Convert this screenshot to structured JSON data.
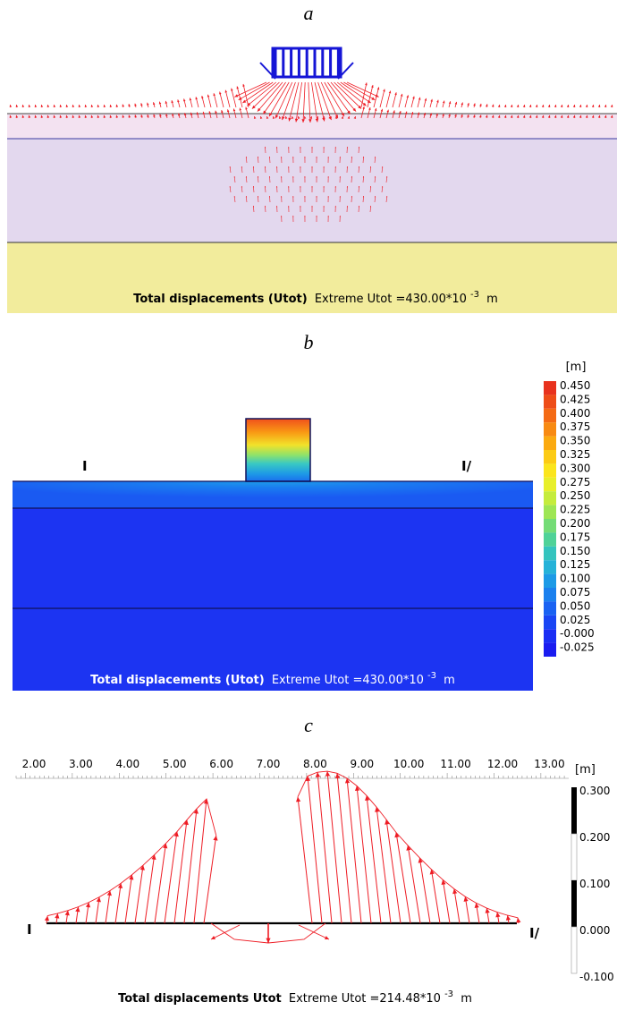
{
  "panels": {
    "a": {
      "label": "a",
      "caption_bold": "Total displacements (Utot)",
      "caption_rest": "Extreme Utot =430.00*10",
      "caption_exp": "-3",
      "caption_unit": "m",
      "colors": {
        "layer_top": "#f3e2f1",
        "layer_mid": "#e3d8ee",
        "layer_bottom": "#f2ec9c",
        "arrows": "#ee1c24",
        "footing": "#1515d6"
      }
    },
    "b": {
      "label": "b",
      "section_start": "I",
      "section_end": "I/",
      "unit": "[m]",
      "legend_values": [
        "0.450",
        "0.425",
        "0.400",
        "0.375",
        "0.350",
        "0.325",
        "0.300",
        "0.275",
        "0.250",
        "0.225",
        "0.200",
        "0.175",
        "0.150",
        "0.125",
        "0.100",
        "0.075",
        "0.050",
        "0.025",
        "-0.000",
        "-0.025"
      ],
      "legend_colors": [
        "#e8321e",
        "#ee4d18",
        "#f46a14",
        "#f88a12",
        "#fbaa10",
        "#fccb14",
        "#fbe51c",
        "#e8ef2a",
        "#c5ec3c",
        "#9ee654",
        "#74dc76",
        "#4fd298",
        "#34c4be",
        "#25b2d8",
        "#1c9ae6",
        "#1a80ee",
        "#1a62f2",
        "#1a46f4",
        "#1a2ef4",
        "#1a1cf0"
      ],
      "caption_bold": "Total displacements (Utot)",
      "caption_rest": "Extreme Utot =430.00*10",
      "caption_exp": "-3",
      "caption_unit": "m"
    },
    "c": {
      "label": "c",
      "ruler_ticks": [
        "2.00",
        "3.00",
        "4.00",
        "5.00",
        "6.00",
        "7.00",
        "8.00",
        "9.00",
        "10.00",
        "11.00",
        "12.00",
        "13.00"
      ],
      "unit": "[m]",
      "scale_values": [
        "0.300",
        "0.200",
        "0.100",
        "0.000",
        "-0.100"
      ],
      "section_start": "I",
      "section_end": "I/",
      "caption_bold": "Total displacements Utot",
      "caption_rest": "Extreme Utot =214.48*10",
      "caption_exp": "-3",
      "caption_unit": "m"
    }
  }
}
